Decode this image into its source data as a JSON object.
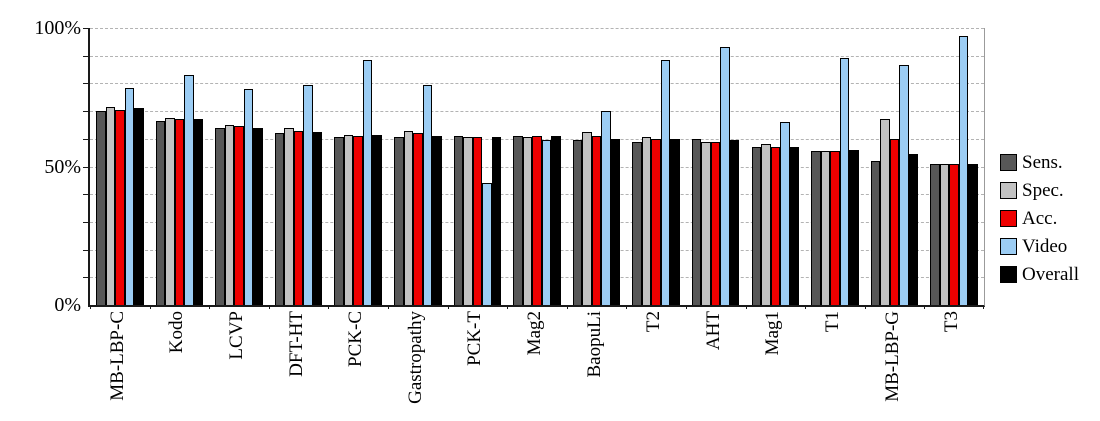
{
  "chart_data": {
    "type": "bar",
    "title": "",
    "xlabel": "",
    "ylabel": "",
    "ylim": [
      0,
      100
    ],
    "y_gridline_step_pct": 10,
    "grid": true,
    "legend_position": "right",
    "y_tick_labels": [
      {
        "label": "100%",
        "value": 100
      },
      {
        "label": "50%",
        "value": 50
      },
      {
        "label": "0%",
        "value": 0
      }
    ],
    "categories": [
      "MB-LBP-C",
      "Kodo",
      "LCVP",
      "DFT-HT",
      "PCK-C",
      "Gastropathy",
      "PCK-T",
      "Mag2",
      "BaopuLi",
      "T2",
      "AHT",
      "Mag1",
      "T1",
      "MB-LBP-G",
      "T3"
    ],
    "series": [
      {
        "name": "Sens.",
        "color": "#575757",
        "values": [
          70,
          66.5,
          64,
          62,
          60.5,
          60.5,
          61,
          61,
          59.5,
          59,
          60,
          57,
          55.5,
          52,
          51
        ]
      },
      {
        "name": "Spec.",
        "color": "#c2c2c2",
        "values": [
          71.5,
          67.5,
          65,
          64,
          61.5,
          63,
          60.5,
          60.5,
          62.5,
          60.5,
          59,
          58,
          55.5,
          67,
          51
        ]
      },
      {
        "name": "Acc.",
        "color": "#ee0000",
        "values": [
          70.5,
          67,
          64.5,
          63,
          61,
          62,
          60.5,
          61,
          61,
          60,
          59,
          57,
          55.5,
          60,
          51
        ]
      },
      {
        "name": "Video",
        "color": "#9ccdf4",
        "values": [
          78.5,
          83,
          78,
          79.5,
          88.5,
          79.5,
          44,
          59.5,
          70,
          88.5,
          93,
          66,
          89,
          86.5,
          97
        ]
      },
      {
        "name": "Overall",
        "color": "#000000",
        "values": [
          71,
          67,
          64,
          62.5,
          61.5,
          61,
          60.5,
          61,
          60,
          60,
          59.5,
          57,
          56,
          54.5,
          51
        ]
      }
    ]
  },
  "style": {
    "background": "#ffffff",
    "gridline_color": "#b3b3b3",
    "axis_color": "#1a1a1a",
    "plot_right_border_color": "#9b9b9b",
    "bar_border_color": "#000000"
  }
}
